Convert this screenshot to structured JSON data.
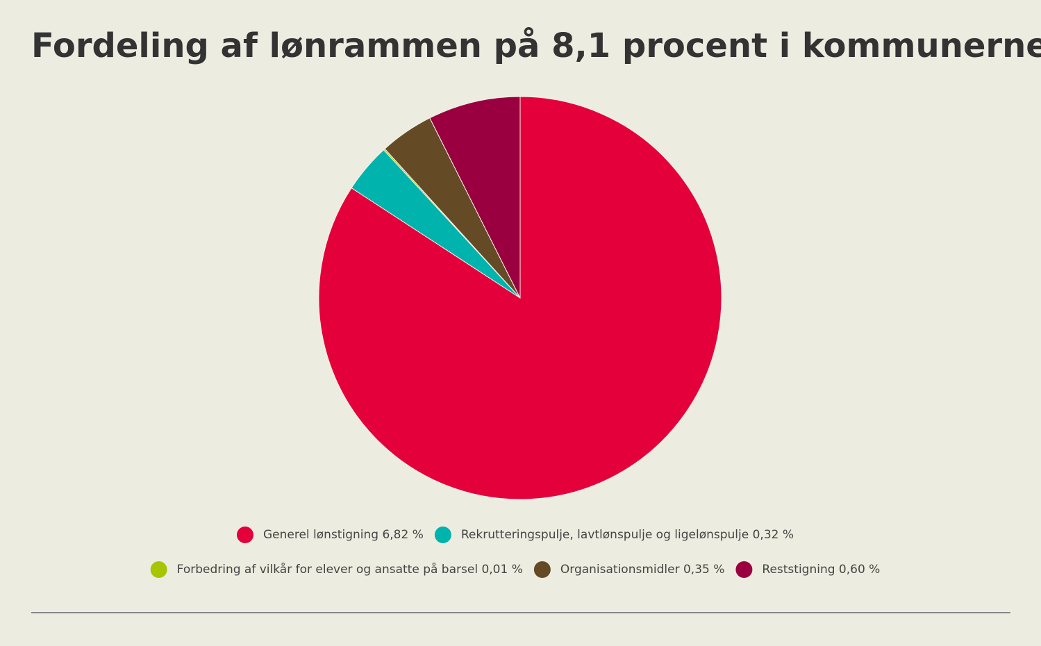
{
  "chart_data": {
    "type": "pie",
    "title": "Fordeling af lønrammen på 8,1 procent i kommunerne",
    "categories": [
      "Generel lønstigning 6,82 %",
      "Rekrutteringspulje, lavtlønspulje og ligelønspulje 0,32 %",
      "Forbedring af vilkår for elever og ansatte på barsel 0,01 %",
      "Organisationsmidler 0,35 %",
      "Reststigning 0,60 %"
    ],
    "values": [
      6.82,
      0.32,
      0.01,
      0.35,
      0.6
    ],
    "colors": [
      "#e4003a",
      "#00b3ad",
      "#a9c400",
      "#654a26",
      "#9a0040"
    ]
  }
}
